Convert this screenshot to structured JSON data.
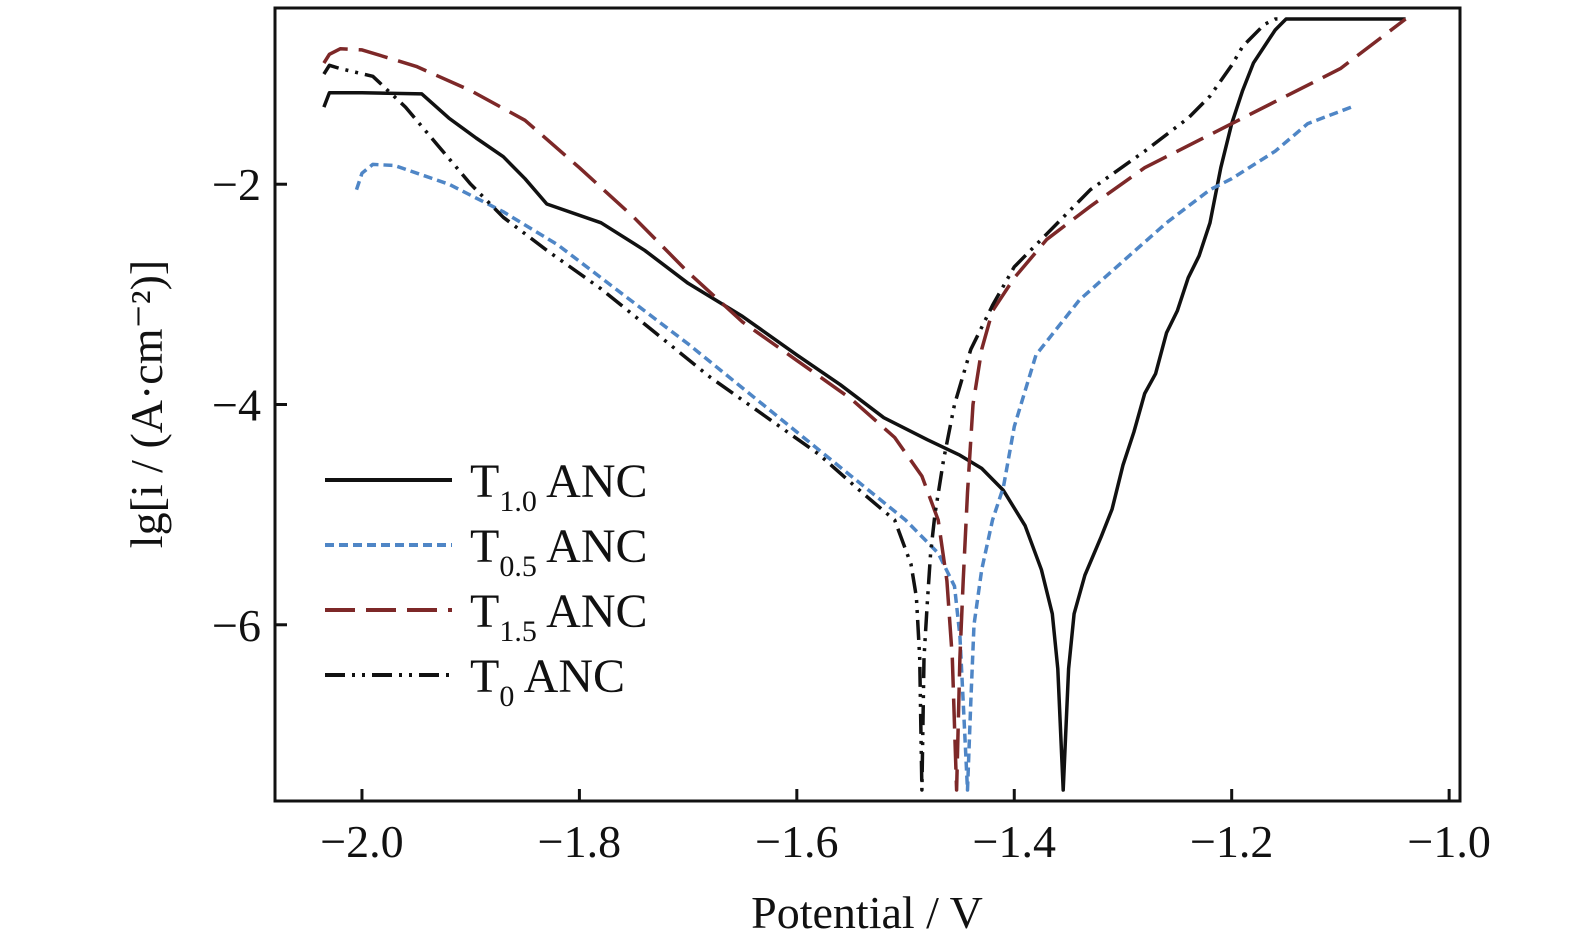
{
  "chart_data": {
    "type": "line",
    "xlabel": "Potential / V",
    "ylabel": "lg[i / (A·cm⁻²)]",
    "xlim": [
      -2.08,
      -0.99
    ],
    "ylim": [
      -7.6,
      -0.4
    ],
    "x_ticks": [
      -2.0,
      -1.8,
      -1.6,
      -1.4,
      -1.2,
      -1.0
    ],
    "x_tick_labels": [
      "−2.0",
      "−1.8",
      "−1.6",
      "−1.4",
      "−1.2",
      "−1.0"
    ],
    "y_ticks": [
      -2,
      -4,
      -6
    ],
    "y_tick_labels": [
      "−2",
      "−4",
      "−6"
    ],
    "grid": false,
    "legend_position": "lower-left",
    "series": [
      {
        "name_main": "T",
        "name_sub": "1.0",
        "name_tail": " ANC",
        "color": "#111111",
        "dash": "none",
        "x": [
          -2.035,
          -2.03,
          -2.0,
          -1.945,
          -1.92,
          -1.895,
          -1.87,
          -1.85,
          -1.83,
          -1.78,
          -1.74,
          -1.7,
          -1.65,
          -1.6,
          -1.56,
          -1.52,
          -1.48,
          -1.45,
          -1.43,
          -1.41,
          -1.39,
          -1.375,
          -1.365,
          -1.36,
          -1.355,
          -1.35,
          -1.345,
          -1.335,
          -1.32,
          -1.31,
          -1.3,
          -1.29,
          -1.28,
          -1.27,
          -1.26,
          -1.25,
          -1.24,
          -1.23,
          -1.22,
          -1.21,
          -1.2,
          -1.19,
          -1.18,
          -1.17,
          -1.16,
          -1.155,
          -1.15,
          -1.1,
          -1.06,
          -1.04
        ],
        "y": [
          -1.3,
          -1.17,
          -1.17,
          -1.18,
          -1.4,
          -1.58,
          -1.75,
          -1.95,
          -2.18,
          -2.35,
          -2.6,
          -2.9,
          -3.2,
          -3.55,
          -3.82,
          -4.12,
          -4.32,
          -4.46,
          -4.58,
          -4.78,
          -5.1,
          -5.5,
          -5.9,
          -6.4,
          -7.5,
          -6.4,
          -5.9,
          -5.55,
          -5.2,
          -4.95,
          -4.55,
          -4.25,
          -3.9,
          -3.72,
          -3.35,
          -3.15,
          -2.85,
          -2.65,
          -2.35,
          -1.85,
          -1.45,
          -1.15,
          -0.9,
          -0.75,
          -0.6,
          -0.55,
          -0.5,
          -0.5,
          -0.5,
          -0.5
        ]
      },
      {
        "name_main": "T",
        "name_sub": "0.5",
        "name_tail": " ANC",
        "color": "#4f86c6",
        "dash": "9 5",
        "x": [
          -2.005,
          -2.0,
          -1.99,
          -1.97,
          -1.92,
          -1.87,
          -1.82,
          -1.78,
          -1.74,
          -1.7,
          -1.65,
          -1.6,
          -1.55,
          -1.5,
          -1.47,
          -1.455,
          -1.45,
          -1.447,
          -1.443,
          -1.44,
          -1.437,
          -1.43,
          -1.42,
          -1.41,
          -1.4,
          -1.38,
          -1.34,
          -1.3,
          -1.26,
          -1.22,
          -1.2,
          -1.16,
          -1.13,
          -1.09
        ],
        "y": [
          -2.05,
          -1.9,
          -1.82,
          -1.83,
          -2.0,
          -2.25,
          -2.55,
          -2.85,
          -3.15,
          -3.45,
          -3.85,
          -4.25,
          -4.65,
          -5.05,
          -5.35,
          -5.65,
          -6.1,
          -6.7,
          -7.5,
          -6.7,
          -6.0,
          -5.5,
          -5.05,
          -4.75,
          -4.2,
          -3.55,
          -3.05,
          -2.7,
          -2.35,
          -2.05,
          -1.95,
          -1.7,
          -1.45,
          -1.3
        ]
      },
      {
        "name_main": "T",
        "name_sub": "1.5",
        "name_tail": " ANC",
        "color": "#7d2828",
        "dash": "30 11",
        "x": [
          -2.035,
          -2.03,
          -2.02,
          -2.0,
          -1.95,
          -1.9,
          -1.85,
          -1.8,
          -1.75,
          -1.7,
          -1.65,
          -1.6,
          -1.55,
          -1.51,
          -1.485,
          -1.47,
          -1.462,
          -1.457,
          -1.453,
          -1.45,
          -1.447,
          -1.443,
          -1.438,
          -1.43,
          -1.42,
          -1.4,
          -1.37,
          -1.33,
          -1.28,
          -1.22,
          -1.16,
          -1.1,
          -1.06,
          -1.04
        ],
        "y": [
          -0.9,
          -0.82,
          -0.77,
          -0.78,
          -0.93,
          -1.15,
          -1.42,
          -1.85,
          -2.3,
          -2.8,
          -3.25,
          -3.6,
          -3.95,
          -4.3,
          -4.65,
          -5.05,
          -5.6,
          -6.3,
          -7.5,
          -6.3,
          -5.6,
          -4.8,
          -4.0,
          -3.5,
          -3.15,
          -2.85,
          -2.5,
          -2.2,
          -1.85,
          -1.55,
          -1.25,
          -0.95,
          -0.65,
          -0.5
        ]
      },
      {
        "name_main": "T",
        "name_sub": "0",
        "name_tail": " ANC",
        "color": "#111111",
        "dash": "20 7 3 7 3 7",
        "x": [
          -2.035,
          -2.03,
          -2.02,
          -1.99,
          -1.96,
          -1.93,
          -1.9,
          -1.87,
          -1.83,
          -1.78,
          -1.73,
          -1.68,
          -1.63,
          -1.58,
          -1.54,
          -1.51,
          -1.495,
          -1.49,
          -1.487,
          -1.485,
          -1.483,
          -1.48,
          -1.477,
          -1.473,
          -1.465,
          -1.455,
          -1.44,
          -1.42,
          -1.4,
          -1.37,
          -1.33,
          -1.28,
          -1.24,
          -1.22,
          -1.2,
          -1.19,
          -1.17,
          -1.16,
          -1.155
        ],
        "y": [
          -1.0,
          -0.92,
          -0.95,
          -1.02,
          -1.3,
          -1.65,
          -2.0,
          -2.3,
          -2.6,
          -2.95,
          -3.35,
          -3.75,
          -4.1,
          -4.45,
          -4.8,
          -5.05,
          -5.45,
          -5.75,
          -6.3,
          -7.5,
          -6.3,
          -5.8,
          -5.35,
          -5.0,
          -4.5,
          -4.0,
          -3.5,
          -3.1,
          -2.75,
          -2.45,
          -2.05,
          -1.7,
          -1.4,
          -1.2,
          -0.92,
          -0.75,
          -0.55,
          -0.5,
          -0.5
        ]
      }
    ]
  }
}
